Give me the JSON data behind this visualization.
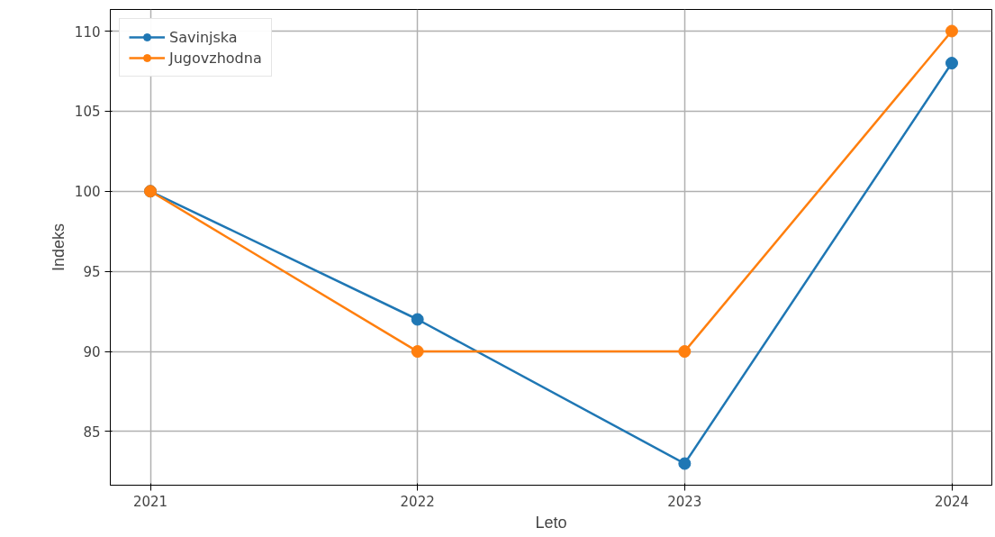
{
  "chart_data": {
    "type": "line",
    "xlabel": "Leto",
    "ylabel": "Indeks",
    "x": [
      2021,
      2022,
      2023,
      2024
    ],
    "series": [
      {
        "name": "Savinjska",
        "color": "#1f77b4",
        "values": [
          100,
          92,
          83,
          108
        ]
      },
      {
        "name": "Jugovzhodna",
        "color": "#ff7f0e",
        "values": [
          100,
          90,
          90,
          110
        ]
      }
    ],
    "xlim": [
      2020.85,
      2024.15
    ],
    "ylim": [
      81.65,
      111.35
    ],
    "xticks": [
      2021,
      2022,
      2023,
      2024
    ],
    "yticks": [
      85,
      90,
      95,
      100,
      105,
      110
    ],
    "grid": true,
    "legend": "top left",
    "marker": "circle",
    "line_style": "solid"
  }
}
